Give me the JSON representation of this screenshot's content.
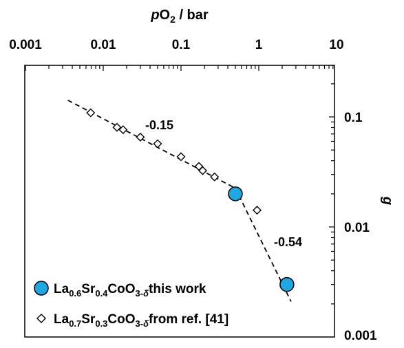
{
  "chart_data": {
    "type": "scatter",
    "x_axis": {
      "title_italic": "p",
      "title_sub": "2",
      "title_main": "O",
      "title_unit": " / bar",
      "scale": "log",
      "range": [
        0.003,
        3.0
      ],
      "tick_labels": [
        "0.001",
        "0.01",
        "0.1",
        "1",
        "10"
      ],
      "tick_values": [
        0.001,
        0.01,
        0.1,
        1,
        10
      ],
      "position": "top"
    },
    "y_axis": {
      "title": "g",
      "scale": "log",
      "range": [
        0.001,
        0.2
      ],
      "tick_labels": [
        "0.1",
        "0.01",
        "0.001"
      ],
      "tick_values": [
        0.1,
        0.01,
        0.001
      ],
      "position": "right"
    },
    "series": [
      {
        "name_parts": [
          {
            "t": "La",
            "sub": false
          },
          {
            "t": "0.6",
            "sub": true
          },
          {
            "t": "Sr",
            "sub": false
          },
          {
            "t": "0.4",
            "sub": true
          },
          {
            "t": "CoO",
            "sub": false
          },
          {
            "t": "3-δ",
            "sub": true
          },
          {
            "t": "this work",
            "sub": false
          }
        ],
        "marker": "circle",
        "color": "#1ea7e1",
        "points": [
          {
            "x": 0.5,
            "y": 0.02
          },
          {
            "x": 2.3,
            "y": 0.003
          }
        ]
      },
      {
        "name_parts": [
          {
            "t": "La",
            "sub": false
          },
          {
            "t": "0.7",
            "sub": true
          },
          {
            "t": "Sr",
            "sub": false
          },
          {
            "t": "0.3",
            "sub": true
          },
          {
            "t": "CoO",
            "sub": false
          },
          {
            "t": "3-δ",
            "sub": true
          },
          {
            "t": "from ref. [41]",
            "sub": false
          }
        ],
        "marker": "diamond",
        "color": "#ffffff",
        "points": [
          {
            "x": 0.0069,
            "y": 0.109
          },
          {
            "x": 0.015,
            "y": 0.0805
          },
          {
            "x": 0.018,
            "y": 0.0765
          },
          {
            "x": 0.03,
            "y": 0.0655
          },
          {
            "x": 0.05,
            "y": 0.057
          },
          {
            "x": 0.1,
            "y": 0.0435
          },
          {
            "x": 0.17,
            "y": 0.0355
          },
          {
            "x": 0.19,
            "y": 0.0325
          },
          {
            "x": 0.27,
            "y": 0.0285
          },
          {
            "x": 0.95,
            "y": 0.0142
          }
        ]
      }
    ],
    "fit_lines": [
      {
        "points": [
          {
            "x": 0.0035,
            "y": 0.142
          },
          {
            "x": 0.5,
            "y": 0.0225
          }
        ],
        "slope_label": "-0.15"
      },
      {
        "points": [
          {
            "x": 0.5,
            "y": 0.0225
          },
          {
            "x": 2.6,
            "y": 0.0021
          }
        ],
        "slope_label": "-0.54"
      }
    ],
    "legend_position": "bottom-left",
    "grid": false
  }
}
